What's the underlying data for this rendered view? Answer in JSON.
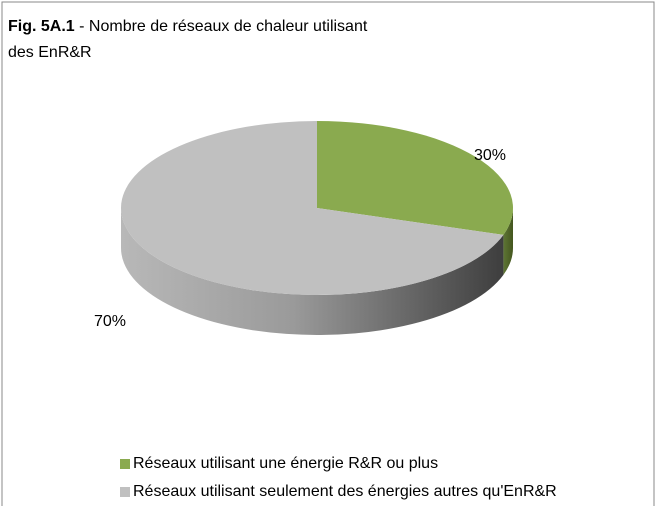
{
  "chart_data": {
    "type": "pie",
    "title_label": "Fig. 5A.1",
    "title": "- Nombre de réseaux de chaleur utilisant des EnR&R",
    "categories": [
      "Réseaux utilisant une énergie R&R ou plus",
      "Réseaux utilisant seulement des énergies autres qu'EnR&R"
    ],
    "values": [
      30,
      70
    ],
    "value_labels": [
      "30%",
      "70%"
    ],
    "colors": [
      "#8aaa4f",
      "#c0c0c0"
    ]
  }
}
